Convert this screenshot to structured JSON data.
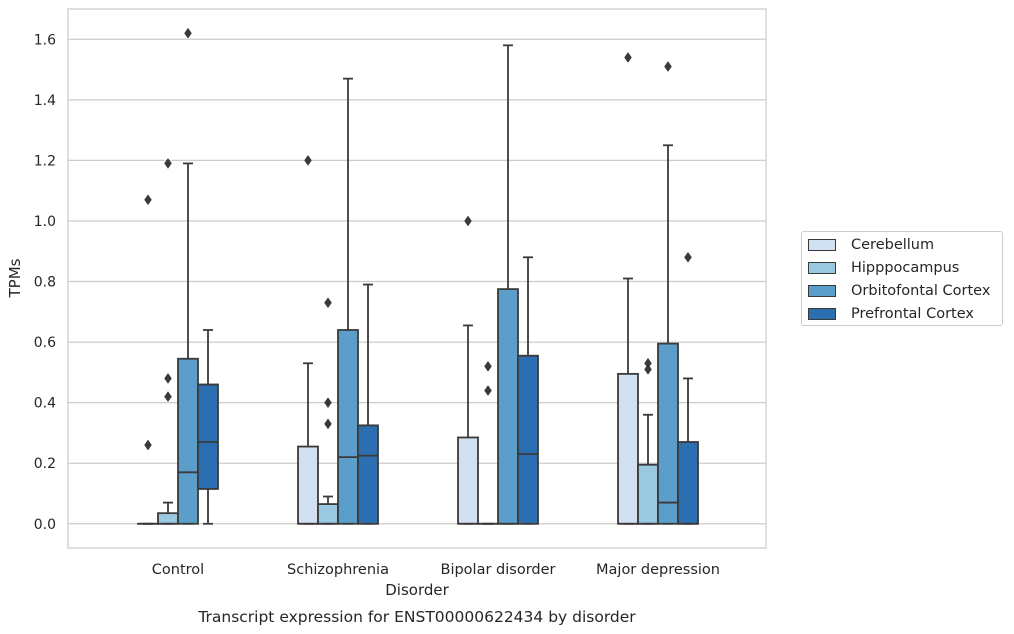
{
  "chart_data": {
    "type": "boxplot",
    "title": "Transcript expression for ENST00000622434 by disorder",
    "xlabel": "Disorder",
    "ylabel": "TPMs",
    "ylim": [
      -0.08,
      1.7
    ],
    "yticks": [
      0.0,
      0.2,
      0.4,
      0.6,
      0.8,
      1.0,
      1.2,
      1.4,
      1.6
    ],
    "ytick_labels": [
      "0.0",
      "0.2",
      "0.4",
      "0.6",
      "0.8",
      "1.0",
      "1.2",
      "1.4",
      "1.6"
    ],
    "grid": "horizontal",
    "legend_position": "right",
    "categories": [
      "Control",
      "Schizophrenia",
      "Bipolar disorder",
      "Major depression"
    ],
    "series": [
      {
        "name": "Cerebellum",
        "color": "#d1e1f1",
        "boxes": [
          {
            "whislo": 0.0,
            "q1": 0.0,
            "med": 0.0,
            "q3": 0.0,
            "whishi": 0.0,
            "fliers": [
              0.26,
              1.07
            ]
          },
          {
            "whislo": 0.0,
            "q1": 0.0,
            "med": 0.0,
            "q3": 0.255,
            "whishi": 0.53,
            "fliers": [
              1.2
            ]
          },
          {
            "whislo": 0.0,
            "q1": 0.0,
            "med": 0.0,
            "q3": 0.285,
            "whishi": 0.655,
            "fliers": [
              1.0
            ]
          },
          {
            "whislo": 0.0,
            "q1": 0.0,
            "med": 0.0,
            "q3": 0.495,
            "whishi": 0.81,
            "fliers": [
              1.54
            ]
          }
        ]
      },
      {
        "name": "Hipppocampus",
        "color": "#9ac8e0",
        "boxes": [
          {
            "whislo": 0.0,
            "q1": 0.0,
            "med": 0.0,
            "q3": 0.035,
            "whishi": 0.07,
            "fliers": [
              0.42,
              0.48,
              1.19
            ]
          },
          {
            "whislo": 0.0,
            "q1": 0.0,
            "med": 0.0,
            "q3": 0.065,
            "whishi": 0.09,
            "fliers": [
              0.33,
              0.4,
              0.73
            ]
          },
          {
            "whislo": 0.0,
            "q1": 0.0,
            "med": 0.0,
            "q3": 0.0,
            "whishi": 0.0,
            "fliers": [
              0.44,
              0.52
            ]
          },
          {
            "whislo": 0.0,
            "q1": 0.0,
            "med": 0.0,
            "q3": 0.195,
            "whishi": 0.36,
            "fliers": [
              0.51,
              0.53
            ]
          }
        ]
      },
      {
        "name": "Orbitofontal Cortex",
        "color": "#5a9ec9",
        "boxes": [
          {
            "whislo": 0.0,
            "q1": 0.0,
            "med": 0.17,
            "q3": 0.545,
            "whishi": 1.19,
            "fliers": [
              1.62
            ]
          },
          {
            "whislo": 0.0,
            "q1": 0.0,
            "med": 0.22,
            "q3": 0.64,
            "whishi": 1.47,
            "fliers": []
          },
          {
            "whislo": 0.0,
            "q1": 0.0,
            "med": 0.0,
            "q3": 0.775,
            "whishi": 1.58,
            "fliers": []
          },
          {
            "whislo": 0.0,
            "q1": 0.0,
            "med": 0.07,
            "q3": 0.595,
            "whishi": 1.25,
            "fliers": [
              1.51
            ]
          }
        ]
      },
      {
        "name": "Prefrontal Cortex",
        "color": "#2c6fb0",
        "boxes": [
          {
            "whislo": 0.0,
            "q1": 0.115,
            "med": 0.27,
            "q3": 0.46,
            "whishi": 0.64,
            "fliers": []
          },
          {
            "whislo": 0.0,
            "q1": 0.0,
            "med": 0.225,
            "q3": 0.325,
            "whishi": 0.79,
            "fliers": []
          },
          {
            "whislo": 0.0,
            "q1": 0.0,
            "med": 0.23,
            "q3": 0.555,
            "whishi": 0.88,
            "fliers": []
          },
          {
            "whislo": 0.0,
            "q1": 0.0,
            "med": 0.0,
            "q3": 0.27,
            "whishi": 0.48,
            "fliers": [
              0.88
            ]
          }
        ]
      }
    ]
  }
}
